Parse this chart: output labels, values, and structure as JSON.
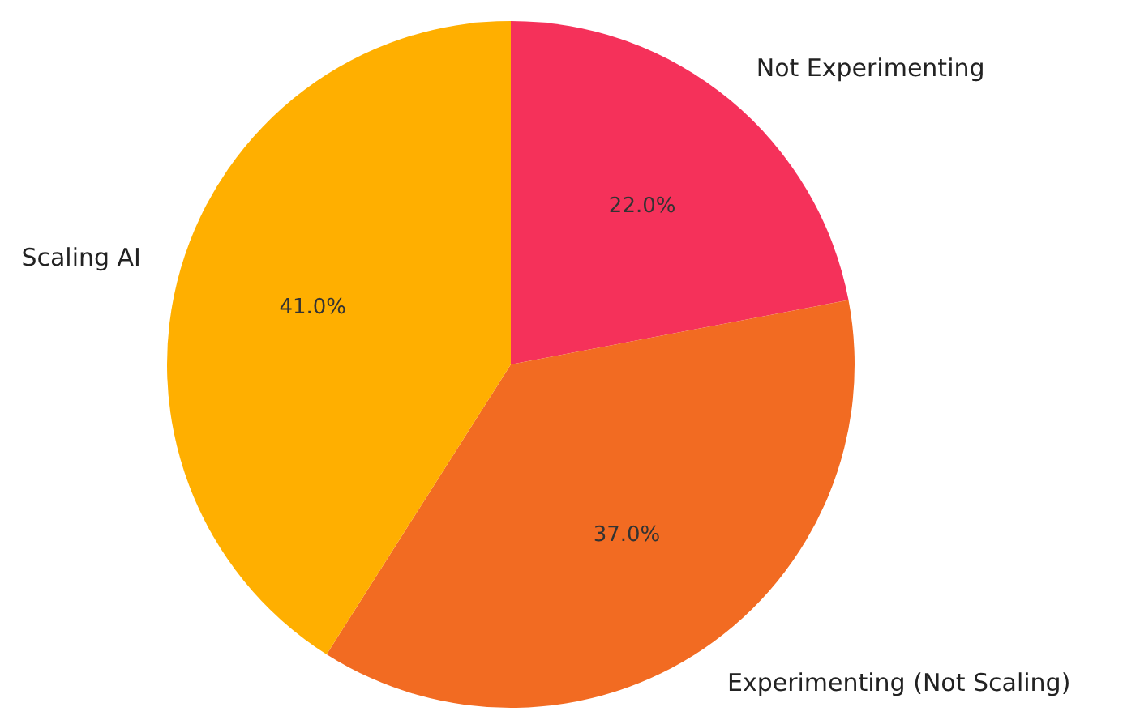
{
  "chart_data": {
    "type": "pie",
    "categories": [
      "Not Experimenting",
      "Experimenting (Not Scaling)",
      "Scaling AI"
    ],
    "values": [
      22.0,
      37.0,
      41.0
    ],
    "colors": [
      "#f5315a",
      "#f26b22",
      "#ffaf00"
    ],
    "value_labels": [
      "22.0%",
      "37.0%",
      "41.0%"
    ],
    "legend": false
  }
}
